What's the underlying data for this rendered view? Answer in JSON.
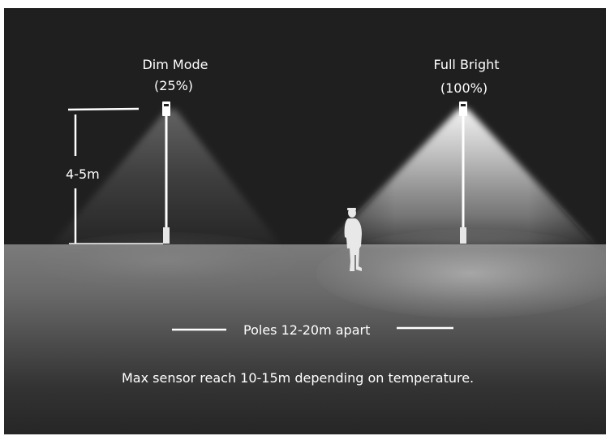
{
  "dim_mode": {
    "label": "Dim Mode",
    "level": "(25%)",
    "brightness_fraction": 0.25
  },
  "full_bright": {
    "label": "Full Bright",
    "level": "(100%)",
    "brightness_fraction": 1.0
  },
  "pole_height": "4-5m",
  "pole_spacing": "Poles 12-20m apart",
  "caption": "Max sensor reach 10-15m depending on temperature.",
  "colors": {
    "sky": "#1f1f1f",
    "ground": "#6a6a6a",
    "text": "#ffffff",
    "pole": "#ffffff"
  },
  "icons": {
    "person": "person-silhouette-icon",
    "lamp": "street-lamp-icon"
  }
}
